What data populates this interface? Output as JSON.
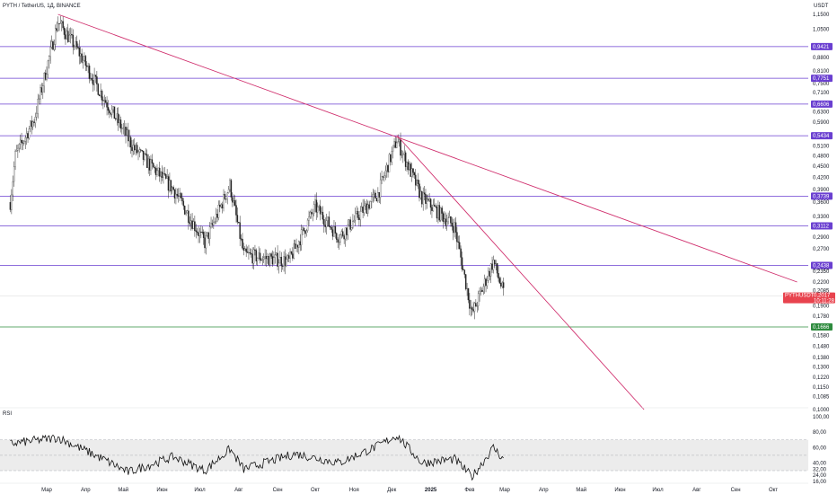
{
  "header": {
    "title": "PYTH / TetherUS, 1Д, BINANCE",
    "currency": "USDT",
    "rsi_label": "RSI"
  },
  "colors": {
    "candle_up": "#3b3b3b",
    "candle_down": "#222222",
    "level_line": "#6a3fd0",
    "trend_line": "#d0306e",
    "support_line": "#2e8b3e",
    "price_badge": "#e8434e",
    "rsi_line": "#111111",
    "rsi_band": "#ececec"
  },
  "chart_data": {
    "type": "candlestick",
    "price_axis": {
      "ticks": [
        "1,1500",
        "1,0500",
        "0,9421",
        "0,8800",
        "0,8100",
        "0,7500",
        "0,7100",
        "0,6606",
        "0,6300",
        "0,5900",
        "0,5434",
        "0,5100",
        "0,4800",
        "0,4500",
        "0,4200",
        "0,3900",
        "0,3739",
        "0,3600",
        "0,3300",
        "0,3112",
        "0,2900",
        "0,2700",
        "0,2400",
        "0,2350",
        "0,2200",
        "0,2085",
        "0,1900",
        "0,1780",
        "0,1666",
        "0,1580",
        "0,1480",
        "0,1380",
        "0,1300",
        "0,1220",
        "0,1150",
        "0,1085",
        "0,1000"
      ]
    },
    "time_axis": {
      "labels": [
        "Мар",
        "Апр",
        "Май",
        "Июн",
        "Июл",
        "Авг",
        "Сен",
        "Окт",
        "Ноя",
        "Дек",
        "2025",
        "Фев",
        "Мар",
        "Апр",
        "Май",
        "Июн",
        "Июл",
        "Авг",
        "Сен",
        "Окт"
      ]
    },
    "horizontal_levels": [
      {
        "price": 0.9421,
        "label": "0,9421"
      },
      {
        "price": 0.7751,
        "label": "0,7751"
      },
      {
        "price": 0.6606,
        "label": "0,6606"
      },
      {
        "price": 0.5434,
        "label": "0,5434"
      },
      {
        "price": 0.3739,
        "label": "0,3739"
      },
      {
        "price": 0.3112,
        "label": "0,3112"
      },
      {
        "price": 0.2438,
        "label": "0,2438"
      }
    ],
    "support_level": {
      "price": 0.1666,
      "label": "0,1666"
    },
    "trend_lines": [
      {
        "from": {
          "time": "2024-03-10",
          "price": 1.15
        },
        "to": {
          "time": "2025-10-20",
          "price": 0.22
        }
      },
      {
        "from": {
          "time": "2024-12-05",
          "price": 0.545
        },
        "to": {
          "time": "2025-06-20",
          "price": 0.1
        }
      }
    ],
    "current_price": {
      "symbol": "PYTHUSDT",
      "price": "0,2017",
      "countdown": "10:11:28",
      "value": 0.2017
    },
    "closes_key_points": [
      {
        "time": "2024-02-01",
        "price": 0.36
      },
      {
        "time": "2024-02-05",
        "price": 0.48
      },
      {
        "time": "2024-02-20",
        "price": 0.6
      },
      {
        "time": "2024-03-10",
        "price": 1.1
      },
      {
        "time": "2024-03-25",
        "price": 0.93
      },
      {
        "time": "2024-04-15",
        "price": 0.69
      },
      {
        "time": "2024-05-10",
        "price": 0.5
      },
      {
        "time": "2024-06-10",
        "price": 0.39
      },
      {
        "time": "2024-07-05",
        "price": 0.28
      },
      {
        "time": "2024-07-25",
        "price": 0.4
      },
      {
        "time": "2024-08-05",
        "price": 0.26
      },
      {
        "time": "2024-09-10",
        "price": 0.25
      },
      {
        "time": "2024-10-01",
        "price": 0.35
      },
      {
        "time": "2024-10-20",
        "price": 0.29
      },
      {
        "time": "2024-11-20",
        "price": 0.38
      },
      {
        "time": "2024-12-05",
        "price": 0.53
      },
      {
        "time": "2024-12-25",
        "price": 0.37
      },
      {
        "time": "2025-01-20",
        "price": 0.31
      },
      {
        "time": "2025-02-03",
        "price": 0.18
      },
      {
        "time": "2025-02-20",
        "price": 0.25
      },
      {
        "time": "2025-03-01",
        "price": 0.2
      }
    ],
    "rsi": {
      "ticks": [
        "100,00",
        "80,00",
        "60,00",
        "40,00",
        "32,00",
        "24,00",
        "16,00"
      ],
      "band": [
        30,
        70
      ],
      "series_key_points": [
        {
          "time": "2024-02-01",
          "value": 65
        },
        {
          "time": "2024-03-10",
          "value": 73
        },
        {
          "time": "2024-04-15",
          "value": 45
        },
        {
          "time": "2024-05-05",
          "value": 28
        },
        {
          "time": "2024-06-10",
          "value": 48
        },
        {
          "time": "2024-07-05",
          "value": 30
        },
        {
          "time": "2024-07-25",
          "value": 58
        },
        {
          "time": "2024-08-05",
          "value": 32
        },
        {
          "time": "2024-09-15",
          "value": 52
        },
        {
          "time": "2024-10-20",
          "value": 40
        },
        {
          "time": "2024-11-20",
          "value": 62
        },
        {
          "time": "2024-12-05",
          "value": 76
        },
        {
          "time": "2024-12-25",
          "value": 40
        },
        {
          "time": "2025-01-20",
          "value": 45
        },
        {
          "time": "2025-02-03",
          "value": 22
        },
        {
          "time": "2025-02-20",
          "value": 60
        },
        {
          "time": "2025-03-01",
          "value": 43
        }
      ]
    }
  }
}
